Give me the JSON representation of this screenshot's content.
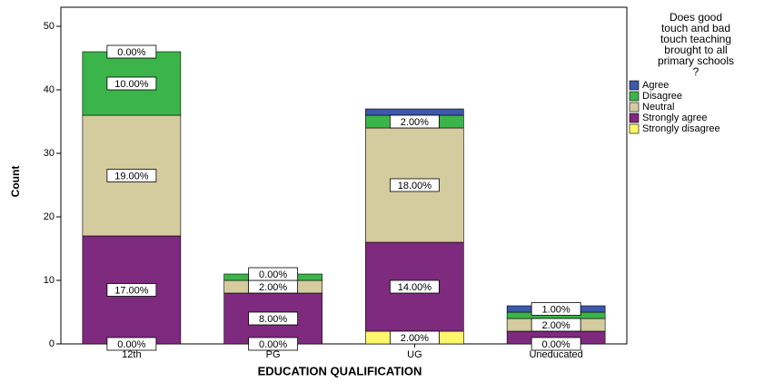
{
  "chart_data": {
    "type": "stacked_bar",
    "x_label": "EDUCATION QUALIFICATION",
    "y_label": "Count",
    "legend_title": [
      "Does good",
      "touch and bad",
      "touch teaching",
      "brought to all",
      "primary schools",
      "?"
    ],
    "categories": [
      "12th",
      "PG",
      "UG",
      "Uneducated"
    ],
    "series": [
      {
        "name": "Strongly disagree",
        "color": "#fdf66b",
        "values": [
          0,
          0,
          2,
          0
        ],
        "value_labels": [
          "0.00%",
          "0.00%",
          "2.00%",
          "0.00%"
        ]
      },
      {
        "name": "Strongly agree",
        "color": "#7e2a7e",
        "values": [
          17,
          8,
          14,
          2
        ],
        "value_labels": [
          "17.00%",
          "8.00%",
          "14.00%",
          null
        ]
      },
      {
        "name": "Neutral",
        "color": "#d4cc9f",
        "values": [
          19,
          2,
          18,
          2
        ],
        "value_labels": [
          "19.00%",
          "2.00%",
          "18.00%",
          "2.00%"
        ]
      },
      {
        "name": "Disagree",
        "color": "#3bb54a",
        "values": [
          10,
          1,
          2,
          1
        ],
        "value_labels": [
          "10.00%",
          null,
          "2.00%",
          null
        ]
      },
      {
        "name": "Agree",
        "color": "#3e58ac",
        "values": [
          0,
          0,
          1,
          1
        ],
        "value_labels": [
          "0.00%",
          "0.00%",
          null,
          "1.00%"
        ]
      }
    ],
    "ylim": [
      0,
      53
    ],
    "yticks": [
      0,
      10,
      20,
      30,
      40,
      50
    ],
    "grid": false,
    "legend": "right"
  }
}
